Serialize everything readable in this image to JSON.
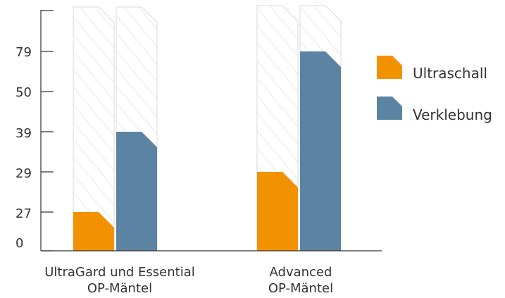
{
  "chart_data": {
    "type": "bar",
    "title": "",
    "xlabel": "",
    "ylabel": "",
    "y_tick_labels": [
      "0",
      "27",
      "29",
      "39",
      "50",
      "79"
    ],
    "categories": [
      {
        "lines": [
          "UltraGard und Essential",
          "OP-Mäntel"
        ]
      },
      {
        "lines": [
          "Advanced",
          "OP-Mäntel"
        ]
      }
    ],
    "series": [
      {
        "name": "Ultraschall",
        "color": "#f39200",
        "values": [
          27,
          29
        ]
      },
      {
        "name": "Verklebung",
        "color": "#5b84a2",
        "values": [
          39,
          79
        ]
      }
    ],
    "background_bar_color": "#d9d9d9",
    "legend_position": "right",
    "grid": false
  }
}
